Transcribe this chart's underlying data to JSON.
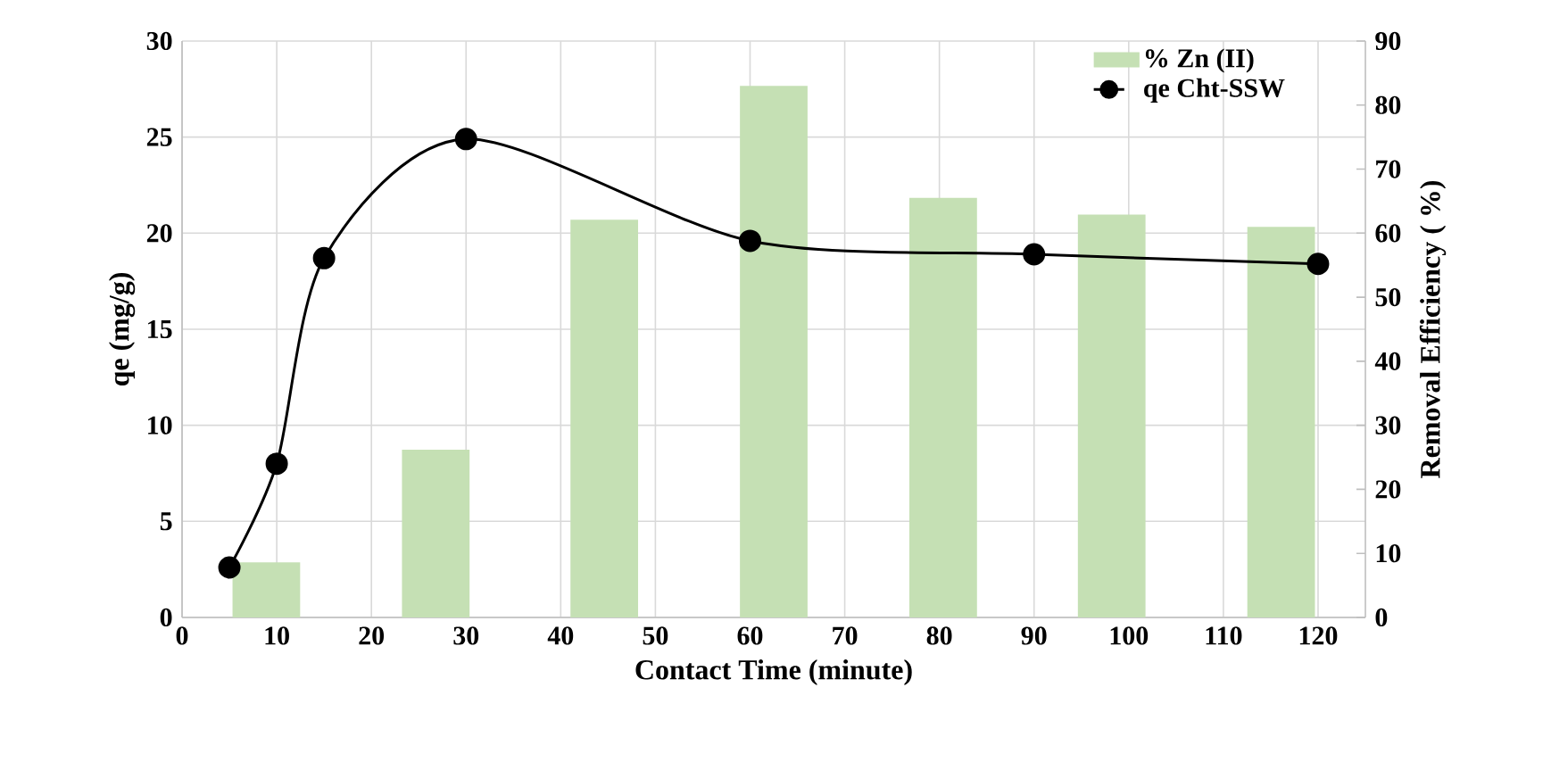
{
  "chart_data": {
    "type": "line",
    "xlabel": "Contact Time (minute)",
    "ylabel": "qe (mg/g)",
    "y2label": "Removal Efficiency ( %)",
    "xlim": [
      0,
      125
    ],
    "xticks": [
      0,
      10,
      20,
      30,
      40,
      50,
      60,
      70,
      80,
      90,
      100,
      110,
      120
    ],
    "ylim": [
      0,
      30
    ],
    "yticks": [
      0,
      5,
      10,
      15,
      20,
      25,
      30
    ],
    "y2lim": [
      0,
      90
    ],
    "y2ticks": [
      0,
      10,
      20,
      30,
      40,
      50,
      60,
      70,
      80,
      90
    ],
    "grid": true,
    "legend": "top right",
    "series": [
      {
        "name": "% Zn (II)",
        "type": "bar",
        "axis": "y2",
        "color": "#c5e0b4",
        "x": [
          8.9,
          26.8,
          44.6,
          62.5,
          80.4,
          98.2,
          116.1
        ],
        "values": [
          8.6,
          26.2,
          62.1,
          83.0,
          65.5,
          62.9,
          61.0
        ]
      },
      {
        "name": "qe Cht-SSW",
        "axis": "y",
        "color": "#000000",
        "marker": "circle",
        "line_style": "solid",
        "x": [
          5,
          10,
          15,
          30,
          60,
          90,
          120
        ],
        "values": [
          2.6,
          8.0,
          18.7,
          24.9,
          19.6,
          18.9,
          18.4
        ]
      }
    ]
  }
}
